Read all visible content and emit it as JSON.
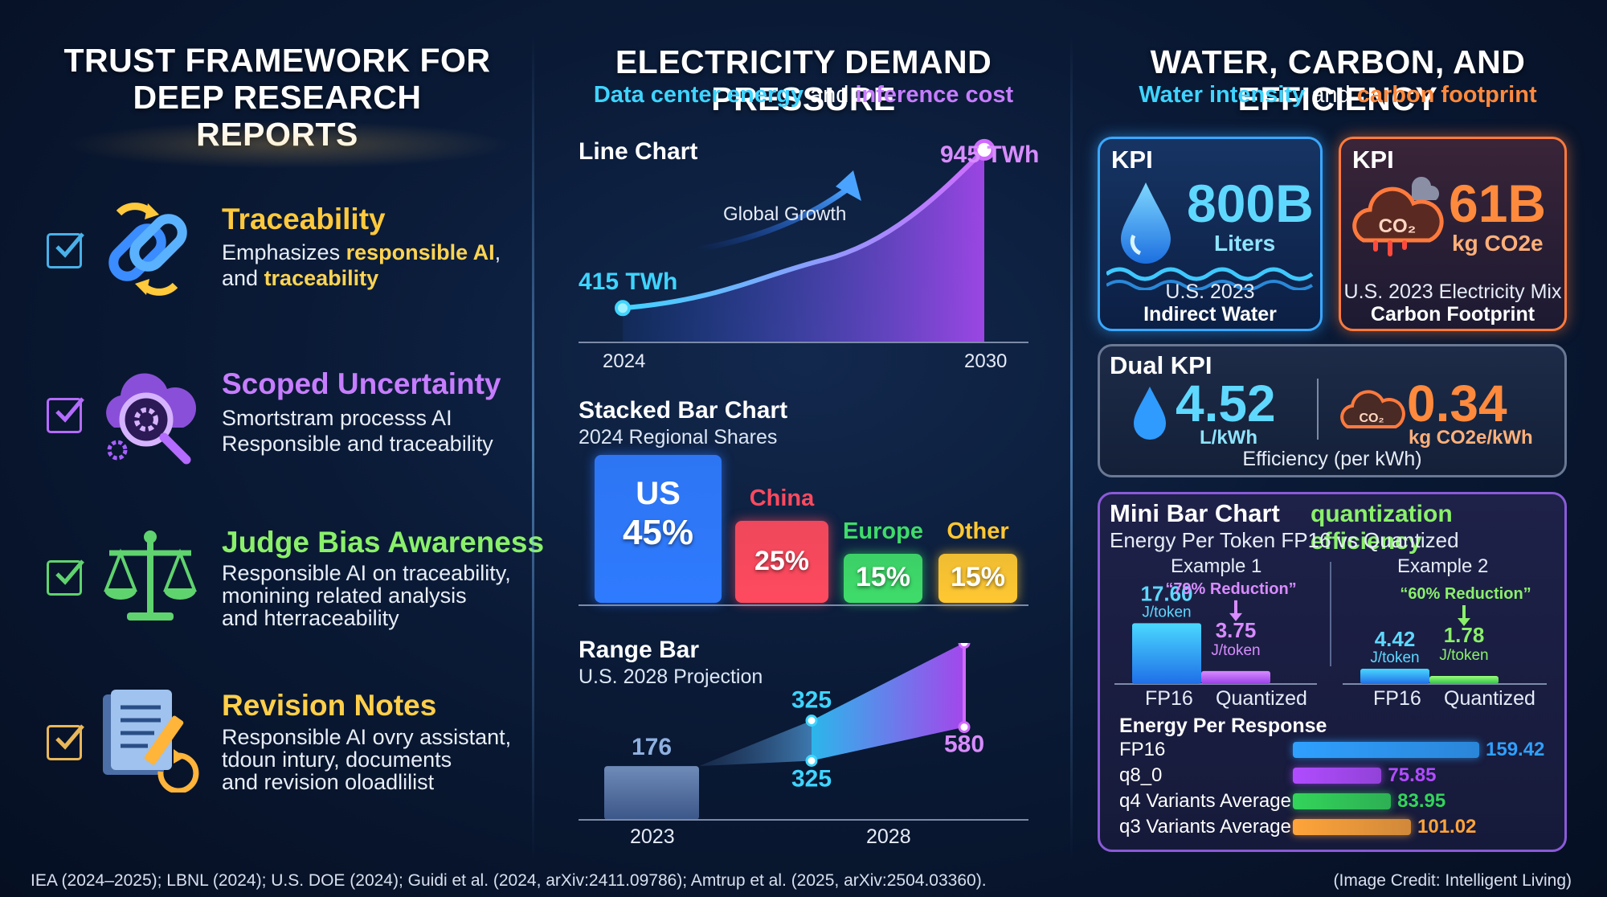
{
  "left": {
    "title_line1": "TRUST FRAMEWORK FOR",
    "title_line2": "DEEP RESEARCH REPORTS",
    "items": [
      {
        "title": "Traceability",
        "desc_a": "Emphasizes ",
        "desc_b": "responsible AI",
        "desc_c": ",",
        "desc_d": "and ",
        "desc_e": "traceability",
        "color": "#ffc93c",
        "icon": "chain-link-icon"
      },
      {
        "title": "Scoped Uncertainty",
        "desc": "Smortstram processs AI\nResponsible and traceability",
        "color": "#c77dff",
        "icon": "cloud-gear-search-icon"
      },
      {
        "title": "Judge Bias Awareness",
        "desc": "Responsible AI on traceability,\nmonining related analysis\nand hterraceability",
        "color": "#7fe36b",
        "icon": "scales-icon"
      },
      {
        "title": "Revision Notes",
        "desc": "Responsible AI ovry assistant,\ntdoun intury, documents\nand revision oloadlilist",
        "color": "#ffcf4a",
        "icon": "document-pencil-icon"
      }
    ]
  },
  "mid": {
    "title": "ELECTRICITY DEMAND PRESSURE",
    "sub_a": "Data center energy",
    "sub_b": " and ",
    "sub_c": "inference cost",
    "line_label": "Line Chart",
    "line_annotation": "Global Growth",
    "line_start_label": "415 TWh",
    "line_end_label": "945 TWh",
    "line_x_start": "2024",
    "line_x_end": "2030",
    "stack_label": "Stacked Bar Chart",
    "stack_sub": "2024 Regional Shares",
    "range_label": "Range Bar",
    "range_sub": "U.S. 2028 Projection",
    "range_x1": "2023",
    "range_x2": "2028"
  },
  "right": {
    "title": "WATER, CARBON, AND EFFICIENCY",
    "sub_a": "Water intensity",
    "sub_b": " and ",
    "sub_c": "carbon footprint",
    "kpi1": {
      "tag": "KPI",
      "value": "800B",
      "unit": "Liters",
      "cap1": "U.S. 2023",
      "cap2": "Indirect Water",
      "icon": "water-drop-icon"
    },
    "kpi2": {
      "tag": "KPI",
      "value": "61B",
      "unit": "kg CO2e",
      "cap1": "U.S. 2023 Electricity Mix",
      "cap2": "Carbon Footprint",
      "icon": "co2-cloud-icon",
      "icon_text": "CO₂"
    },
    "dual": {
      "tag": "Dual KPI",
      "v1": "4.52",
      "u1": "L/kWh",
      "v2": "0.34",
      "u2": "kg CO2e/kWh",
      "cap": "Efficiency (per kWh)",
      "icon_text": "CO₂"
    },
    "mini": {
      "tag": "Mini Bar Chart",
      "accent": "quantization efficiency",
      "sub": "Energy Per Token FP16 vs Quantized",
      "ex1": "Example 1",
      "ex2": "Example 2",
      "unit": "J/token",
      "fp16": "FP16",
      "quant": "Quantized",
      "e1_fp": "17.60",
      "e1_q": "3.75",
      "e1_red": "“79% Reduction”",
      "e2_fp": "4.42",
      "e2_q": "1.78",
      "e2_red": "“60% Reduction”",
      "resp_title": "Energy Per Response"
    }
  },
  "footer": {
    "sources": "IEA (2024–2025); LBNL (2024); U.S. DOE (2024); Guidi et al. (2024, arXiv:2411.09786); Amtrup et al. (2025, arXiv:2504.03360).",
    "credit": "(Image Credit: Intelligent Living)"
  },
  "colors": {
    "cyan": "#3fd4ff",
    "purple": "#b96bff",
    "orange": "#ff8a3d",
    "green": "#8af06a",
    "yellow": "#ffd452"
  },
  "chart_data": [
    {
      "type": "line",
      "title": "Line Chart",
      "x": [
        "2024",
        "2030"
      ],
      "series": [
        {
          "values": [
            415,
            945
          ]
        }
      ],
      "unit": "TWh"
    },
    {
      "type": "bar",
      "title": "Stacked Bar Chart",
      "subtitle": "2024 Regional Shares",
      "categories": [
        "US",
        "China",
        "Europe",
        "Other"
      ],
      "values": [
        45,
        25,
        15,
        15
      ],
      "unit": "%",
      "colors": [
        "#2f7bff",
        "#ff4a5e",
        "#3fdc6a",
        "#ffc832"
      ],
      "labels": [
        "45%",
        "25%",
        "15%",
        "15%"
      ]
    },
    {
      "type": "bar",
      "title": "Range Bar",
      "subtitle": "U.S. 2028 Projection",
      "categories": [
        "2023",
        "2028"
      ],
      "values_2023": [
        176
      ],
      "range_2028": [
        325,
        580
      ]
    },
    {
      "type": "bar",
      "title": "Mini Bar Chart",
      "subtitle": "Energy Per Token FP16 vs Quantized",
      "categories": [
        "FP16",
        "Quantized"
      ],
      "series": [
        {
          "name": "Example 1",
          "values": [
            17.6,
            3.75
          ]
        },
        {
          "name": "Example 2",
          "values": [
            4.42,
            1.78
          ]
        }
      ],
      "unit": "J/token"
    },
    {
      "type": "bar",
      "title": "Energy Per Response",
      "categories": [
        "FP16",
        "q8_0",
        "q4 Variants Average",
        "q3 Variants Average"
      ],
      "values": [
        159.42,
        75.85,
        83.95,
        101.02
      ],
      "colors": [
        "#2fa0ff",
        "#b04cff",
        "#33d45a",
        "#ffa43a"
      ]
    }
  ]
}
